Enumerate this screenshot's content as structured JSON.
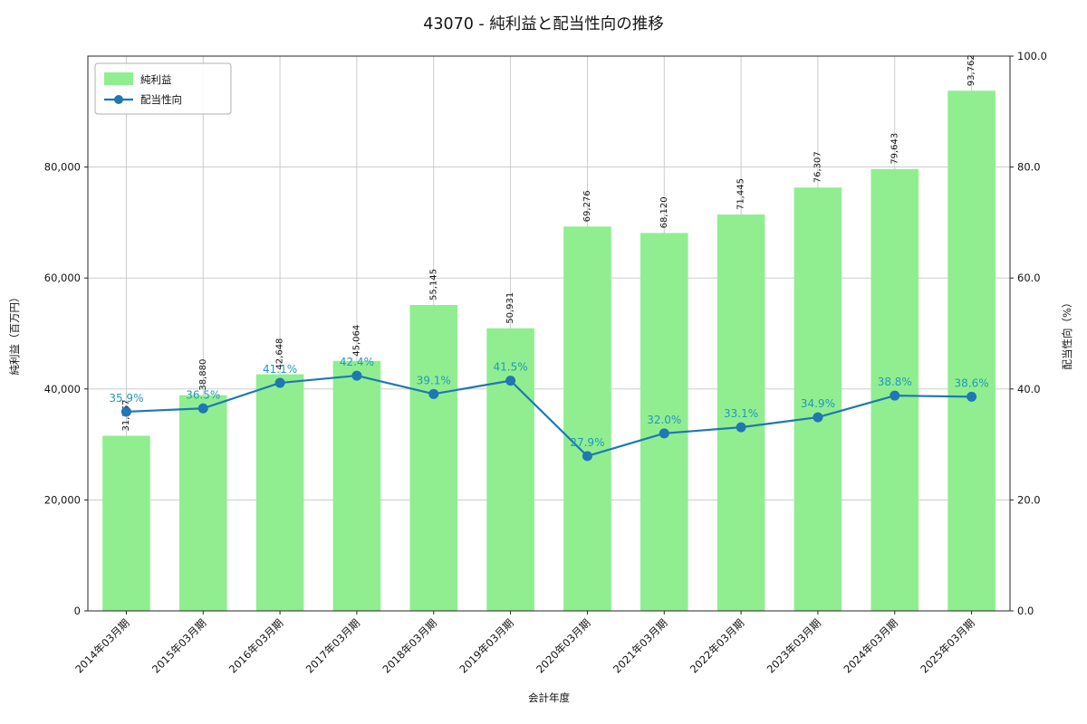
{
  "chart_data": {
    "type": "bar+line",
    "title": "43070 - 純利益と配当性向の推移",
    "xlabel": "会計年度",
    "ylabel_left": "純利益（百万円）",
    "ylabel_right": "配当性向（%）",
    "categories": [
      "2014年03月期",
      "2015年03月期",
      "2016年03月期",
      "2017年03月期",
      "2018年03月期",
      "2019年03月期",
      "2020年03月期",
      "2021年03月期",
      "2022年03月期",
      "2023年03月期",
      "2024年03月期",
      "2025年03月期"
    ],
    "series": [
      {
        "name": "純利益",
        "type": "bar",
        "color": "#90ee90",
        "values": [
          31567,
          38880,
          42648,
          45064,
          55145,
          50931,
          69276,
          68120,
          71445,
          76307,
          79643,
          93762
        ],
        "labels": [
          "31,567",
          "38,880",
          "42,648",
          "45,064",
          "55,145",
          "50,931",
          "69,276",
          "68,120",
          "71,445",
          "76,307",
          "79,643",
          "93,762"
        ]
      },
      {
        "name": "配当性向",
        "type": "line",
        "color": "#1f77b4",
        "values": [
          35.9,
          36.5,
          41.1,
          42.4,
          39.1,
          41.5,
          27.9,
          32.0,
          33.1,
          34.9,
          38.8,
          38.6
        ],
        "labels": [
          "35.9%",
          "36.5%",
          "41.1%",
          "42.4%",
          "39.1%",
          "41.5%",
          "27.9%",
          "32.0%",
          "33.1%",
          "34.9%",
          "38.8%",
          "38.6%"
        ]
      }
    ],
    "ylim_left": [
      0,
      100000
    ],
    "ylim_right": [
      0,
      100
    ],
    "yticks_left": [
      "0",
      "20,000",
      "40,000",
      "60,000",
      "80,000"
    ],
    "ytick_values_left": [
      0,
      20000,
      40000,
      60000,
      80000
    ],
    "yticks_right": [
      "0.0",
      "20.0",
      "40.0",
      "60.0",
      "80.0",
      "100.0"
    ],
    "ytick_values_right": [
      0,
      20,
      40,
      60,
      80,
      100
    ],
    "legend": [
      "純利益",
      "配当性向"
    ],
    "legend_position": "upper-left",
    "grid": true,
    "colors": {
      "bar": "#90ee90",
      "line": "#1f77b4",
      "value_label": "#2596be",
      "grid": "#c6c6c6",
      "spine": "#262626"
    }
  }
}
